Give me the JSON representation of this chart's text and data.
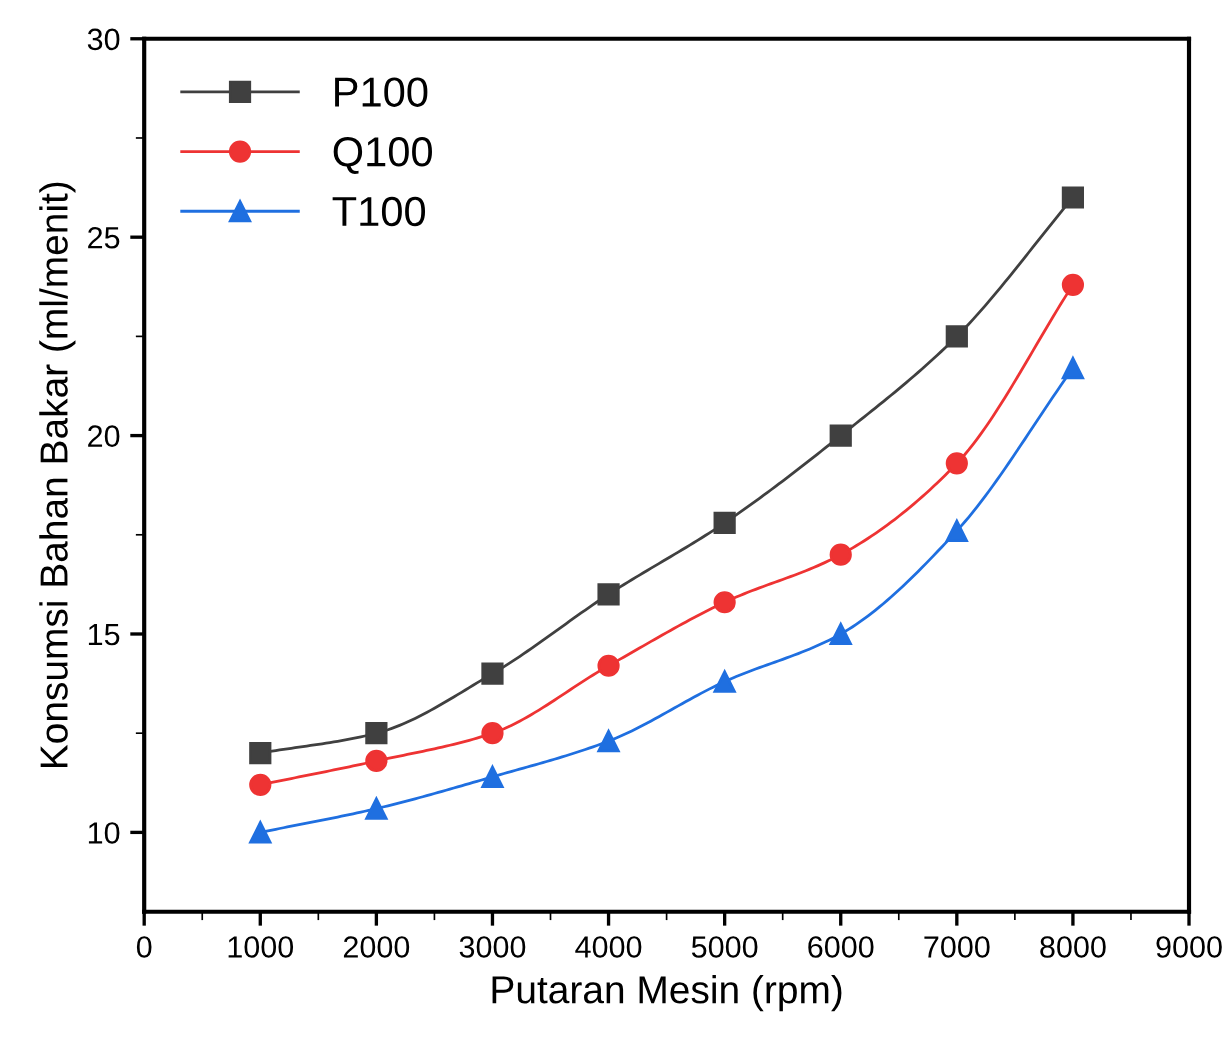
{
  "chart_data": {
    "type": "line",
    "xlabel": "Putaran Mesin (rpm)",
    "ylabel": "Konsumsi Bahan Bakar (ml/menit)",
    "x": [
      1000,
      2000,
      3000,
      4000,
      5000,
      6000,
      7000,
      8000
    ],
    "series": [
      {
        "name": "P100",
        "color": "#404040",
        "marker": "square",
        "values": [
          12,
          12.5,
          14,
          16,
          17.8,
          20,
          22.5,
          26
        ]
      },
      {
        "name": "Q100",
        "color": "#ee3333",
        "marker": "circle",
        "values": [
          11.2,
          11.8,
          12.5,
          14.2,
          15.8,
          17,
          19.3,
          23.8
        ]
      },
      {
        "name": "T100",
        "color": "#1f6fe0",
        "marker": "triangle",
        "values": [
          10,
          10.6,
          11.4,
          12.3,
          13.8,
          15,
          17.6,
          21.7
        ]
      }
    ],
    "xlim": [
      0,
      9000
    ],
    "xticks": [
      0,
      1000,
      2000,
      3000,
      4000,
      5000,
      6000,
      7000,
      8000,
      9000
    ],
    "ylim": [
      8,
      30
    ],
    "yticks": [
      10,
      15,
      20,
      25,
      30
    ],
    "legend": "top left",
    "grid": false,
    "line_style": "solid"
  }
}
